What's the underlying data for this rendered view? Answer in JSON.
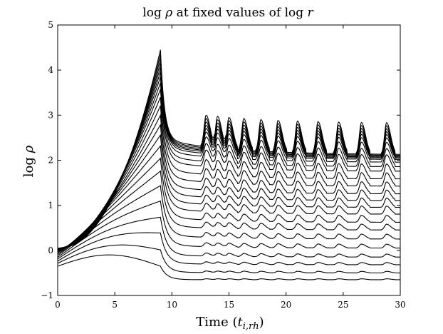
{
  "chart_data": {
    "type": "line",
    "title": "log ρ at fixed values of log r",
    "xlabel": "Time (t_{i,rh})",
    "ylabel": "log ρ",
    "xlim": [
      0,
      30
    ],
    "ylim": [
      -1,
      5
    ],
    "xticks": [
      "0",
      "5",
      "10",
      "15",
      "20",
      "25",
      "30"
    ],
    "yticks": [
      "−1",
      "0",
      "1",
      "2",
      "3",
      "4",
      "5"
    ],
    "grid": false,
    "legend": "none",
    "collapse_time": 9.0,
    "peak_value": 4.45,
    "oscillation_peak_times": [
      13.0,
      14.0,
      15.0,
      16.3,
      17.8,
      19.3,
      21.0,
      22.8,
      24.6,
      26.6,
      28.8
    ],
    "series": [
      {
        "start": 0.05,
        "end": 2.12
      },
      {
        "start": 0.05,
        "end": 2.1
      },
      {
        "start": 0.05,
        "end": 2.08
      },
      {
        "start": 0.05,
        "end": 2.06
      },
      {
        "start": 0.05,
        "end": 2.04
      },
      {
        "start": 0.05,
        "end": 2.01
      },
      {
        "start": 0.04,
        "end": 1.95
      },
      {
        "start": 0.04,
        "end": 1.85
      },
      {
        "start": 0.03,
        "end": 1.75
      },
      {
        "start": 0.02,
        "end": 1.58
      },
      {
        "start": 0.01,
        "end": 1.42
      },
      {
        "start": 0.0,
        "end": 1.25
      },
      {
        "start": -0.01,
        "end": 1.1
      },
      {
        "start": -0.02,
        "end": 0.95
      },
      {
        "start": -0.03,
        "end": 0.8
      },
      {
        "start": -0.05,
        "end": 0.62
      },
      {
        "start": -0.08,
        "end": 0.45
      },
      {
        "start": -0.11,
        "end": 0.25
      },
      {
        "start": -0.15,
        "end": 0.05
      },
      {
        "start": -0.19,
        "end": -0.15
      },
      {
        "start": -0.24,
        "end": -0.32
      },
      {
        "start": -0.29,
        "end": -0.5
      },
      {
        "start": -0.35,
        "end": -0.65
      }
    ]
  }
}
